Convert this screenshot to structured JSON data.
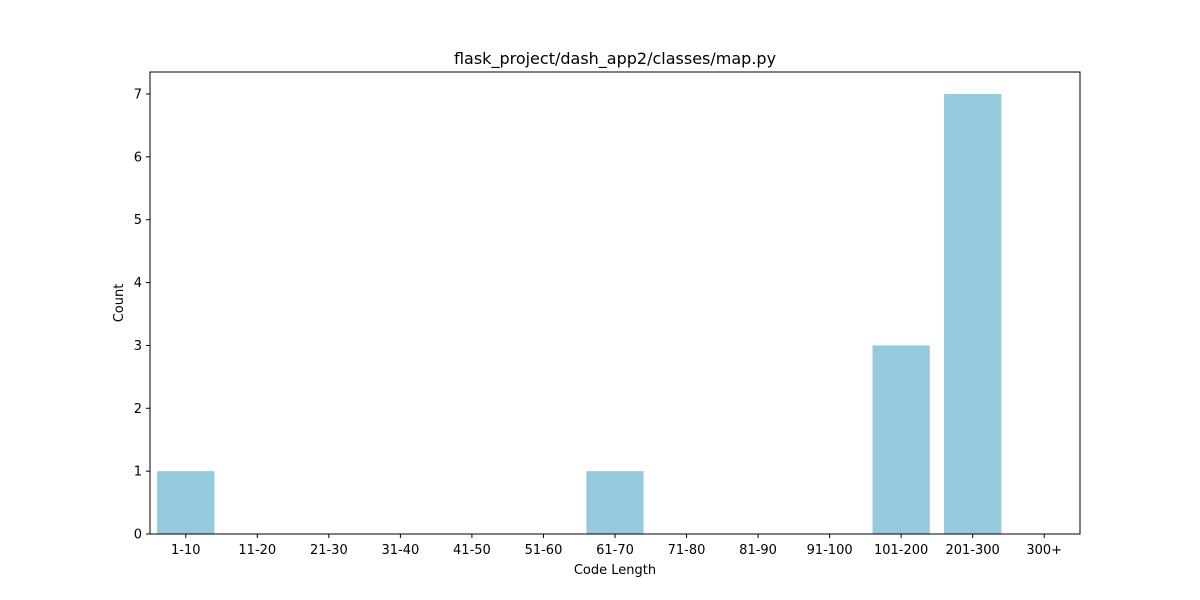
{
  "chart_data": {
    "type": "bar",
    "title": "flask_project/dash_app2/classes/map.py",
    "xlabel": "Code Length",
    "ylabel": "Count",
    "categories": [
      "1-10",
      "11-20",
      "21-30",
      "31-40",
      "41-50",
      "51-60",
      "61-70",
      "71-80",
      "81-90",
      "91-100",
      "101-200",
      "201-300",
      "300+"
    ],
    "values": [
      1,
      0,
      0,
      0,
      0,
      0,
      1,
      0,
      0,
      0,
      3,
      7,
      0
    ],
    "ylim": [
      0,
      7.35
    ],
    "yticks": [
      0,
      1,
      2,
      3,
      4,
      5,
      6,
      7
    ],
    "grid": false,
    "bar_color": "#95c9de"
  }
}
